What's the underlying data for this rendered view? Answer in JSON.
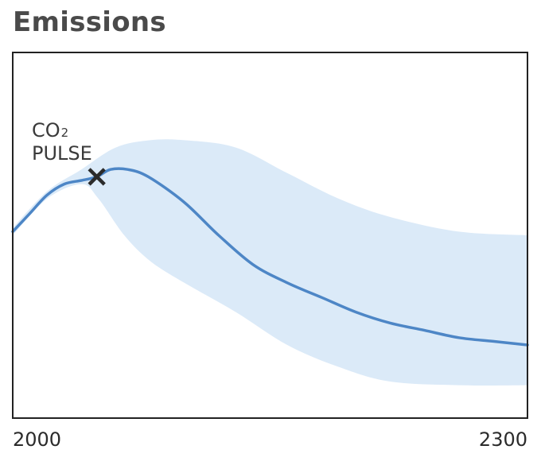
{
  "chart_data": {
    "type": "area",
    "title": "Emissions",
    "xlabel": "",
    "ylabel": "",
    "xlim": [
      2000,
      2300
    ],
    "ylim": [
      0,
      1
    ],
    "grid": false,
    "x_ticks": [
      "2000",
      "2300"
    ],
    "annotation": {
      "label_main": "CO",
      "label_sub": "2",
      "label_line2": "PULSE",
      "x": 2049,
      "y": 0.66
    },
    "series": [
      {
        "values": [
          {
            "x": 2000,
            "y": 0.51
          },
          {
            "x": 2010,
            "y": 0.56
          },
          {
            "x": 2020,
            "y": 0.61
          },
          {
            "x": 2030,
            "y": 0.64
          },
          {
            "x": 2040,
            "y": 0.65
          },
          {
            "x": 2049,
            "y": 0.66
          },
          {
            "x": 2057,
            "y": 0.68
          },
          {
            "x": 2067,
            "y": 0.68
          },
          {
            "x": 2079,
            "y": 0.66
          },
          {
            "x": 2100,
            "y": 0.59
          },
          {
            "x": 2120,
            "y": 0.5
          },
          {
            "x": 2140,
            "y": 0.42
          },
          {
            "x": 2160,
            "y": 0.37
          },
          {
            "x": 2180,
            "y": 0.33
          },
          {
            "x": 2200,
            "y": 0.29
          },
          {
            "x": 2220,
            "y": 0.26
          },
          {
            "x": 2240,
            "y": 0.24
          },
          {
            "x": 2260,
            "y": 0.22
          },
          {
            "x": 2280,
            "y": 0.21
          },
          {
            "x": 2300,
            "y": 0.2
          }
        ]
      }
    ],
    "band": {
      "upper": [
        {
          "x": 2000,
          "y": 0.52
        },
        {
          "x": 2020,
          "y": 0.62
        },
        {
          "x": 2040,
          "y": 0.68
        },
        {
          "x": 2060,
          "y": 0.74
        },
        {
          "x": 2080,
          "y": 0.76
        },
        {
          "x": 2100,
          "y": 0.76
        },
        {
          "x": 2130,
          "y": 0.74
        },
        {
          "x": 2160,
          "y": 0.67
        },
        {
          "x": 2190,
          "y": 0.6
        },
        {
          "x": 2220,
          "y": 0.55
        },
        {
          "x": 2260,
          "y": 0.51
        },
        {
          "x": 2300,
          "y": 0.5
        }
      ],
      "lower": [
        {
          "x": 2000,
          "y": 0.5
        },
        {
          "x": 2020,
          "y": 0.6
        },
        {
          "x": 2040,
          "y": 0.64
        },
        {
          "x": 2050,
          "y": 0.6
        },
        {
          "x": 2065,
          "y": 0.5
        },
        {
          "x": 2080,
          "y": 0.43
        },
        {
          "x": 2100,
          "y": 0.37
        },
        {
          "x": 2130,
          "y": 0.29
        },
        {
          "x": 2160,
          "y": 0.2
        },
        {
          "x": 2190,
          "y": 0.14
        },
        {
          "x": 2220,
          "y": 0.1
        },
        {
          "x": 2260,
          "y": 0.09
        },
        {
          "x": 2300,
          "y": 0.09
        }
      ]
    },
    "colors": {
      "line": "#4d86c6",
      "band": "#dbeaf8",
      "marker": "#2b2b2b",
      "frame": "#222222"
    }
  }
}
